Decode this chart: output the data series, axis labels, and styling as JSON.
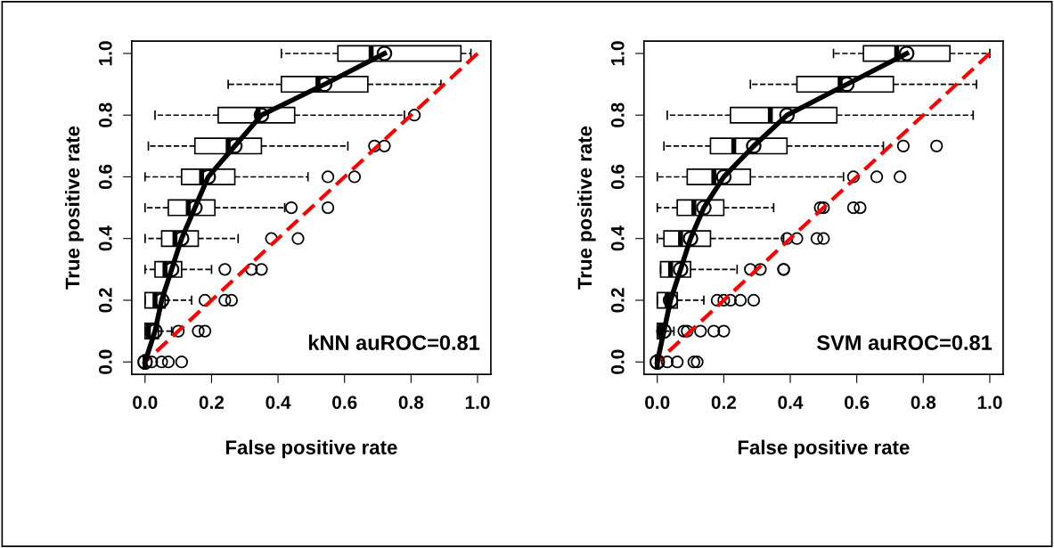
{
  "chart_data": [
    {
      "type": "box",
      "orientation": "horizontal",
      "xlabel": "False positive rate",
      "ylabel": "True positive rate",
      "categories": [
        "1.0",
        null,
        "0.8",
        null,
        "0.6",
        null,
        "0.4",
        null,
        "0.2",
        null,
        "0.0"
      ],
      "xlim": [
        -0.04,
        1.04
      ],
      "xticks": [
        {
          "value": 0,
          "label": "0.0"
        },
        {
          "value": 0.2,
          "label": "0.2"
        },
        {
          "value": 0.4,
          "label": "0.4"
        },
        {
          "value": 0.6,
          "label": "0.6"
        },
        {
          "value": 0.8,
          "label": "0.8"
        },
        {
          "value": 1,
          "label": "1.0"
        }
      ],
      "grid": false,
      "legend": false,
      "annotations": [
        "kNN auROC=0.81"
      ],
      "boxes": [
        {
          "low": 0.41,
          "q1": 0.58,
          "median": 0.68,
          "q3": 0.95,
          "high": 0.98
        },
        {
          "low": 0.25,
          "q1": 0.41,
          "median": 0.52,
          "q3": 0.67,
          "high": 0.89
        },
        {
          "low": 0.03,
          "q1": 0.22,
          "median": 0.34,
          "q3": 0.45,
          "high": 0.78,
          "outliers": [
            0.81
          ]
        },
        {
          "low": 0.01,
          "q1": 0.15,
          "median": 0.25,
          "q3": 0.35,
          "high": 0.61,
          "outliers": [
            0.69,
            0.72
          ]
        },
        {
          "low": 0,
          "q1": 0.11,
          "median": 0.17,
          "q3": 0.27,
          "high": 0.49,
          "outliers": [
            0.55,
            0.63
          ]
        },
        {
          "low": 0,
          "q1": 0.07,
          "median": 0.13,
          "q3": 0.21,
          "high": 0.42,
          "outliers": [
            0.44,
            0.55
          ]
        },
        {
          "low": 0,
          "q1": 0.05,
          "median": 0.09,
          "q3": 0.16,
          "high": 0.28,
          "outliers": [
            0.38,
            0.46
          ]
        },
        {
          "low": 0,
          "q1": 0.03,
          "median": 0.06,
          "q3": 0.11,
          "high": 0.2,
          "outliers": [
            0.24,
            0.32,
            0.35
          ]
        },
        {
          "low": 0,
          "q1": 0,
          "median": 0.03,
          "q3": 0.06,
          "high": 0.14,
          "outliers": [
            0.18,
            0.24,
            0.26
          ]
        },
        {
          "low": 0,
          "q1": 0,
          "median": 0.01,
          "q3": 0.04,
          "high": 0.08,
          "outliers": [
            0.1,
            0.16,
            0.18
          ]
        },
        {
          "low": 0,
          "q1": 0,
          "median": 0,
          "q3": 0,
          "high": 0,
          "outliers": [
            0.02,
            0.05,
            0.07,
            0.11
          ]
        }
      ],
      "series": [
        {
          "type": "line",
          "color": "#ff0000",
          "line_style": "dashed",
          "values": [
            1.0,
            0.9,
            0.8,
            0.7,
            0.6,
            0.5,
            0.4,
            0.3,
            0.2,
            0.1,
            0
          ]
        },
        {
          "type": "line",
          "color": "#000000",
          "line_style": "solid",
          "marker": "circle",
          "values": [
            0.72,
            0.54,
            0.35,
            0.27,
            0.19,
            0.15,
            0.11,
            0.08,
            0.05,
            0.03,
            0
          ]
        }
      ]
    },
    {
      "type": "box",
      "orientation": "horizontal",
      "xlabel": "False positive rate",
      "ylabel": "True positive rate",
      "categories": [
        "1.0",
        null,
        "0.8",
        null,
        "0.6",
        null,
        "0.4",
        null,
        "0.2",
        null,
        "0.0"
      ],
      "xlim": [
        -0.04,
        1.04
      ],
      "xticks": [
        {
          "value": 0,
          "label": "0.0"
        },
        {
          "value": 0.2,
          "label": "0.2"
        },
        {
          "value": 0.4,
          "label": "0.4"
        },
        {
          "value": 0.6,
          "label": "0.6"
        },
        {
          "value": 0.8,
          "label": "0.8"
        },
        {
          "value": 1,
          "label": "1.0"
        }
      ],
      "grid": false,
      "legend": false,
      "annotations": [
        "SVM auROC=0.81"
      ],
      "boxes": [
        {
          "low": 0.53,
          "q1": 0.62,
          "median": 0.72,
          "q3": 0.88,
          "high": 1.0
        },
        {
          "low": 0.28,
          "q1": 0.42,
          "median": 0.55,
          "q3": 0.71,
          "high": 0.96
        },
        {
          "low": 0.03,
          "q1": 0.22,
          "median": 0.34,
          "q3": 0.54,
          "high": 0.95
        },
        {
          "low": 0.02,
          "q1": 0.16,
          "median": 0.23,
          "q3": 0.39,
          "high": 0.68,
          "outliers": [
            0.74,
            0.84
          ]
        },
        {
          "low": 0,
          "q1": 0.09,
          "median": 0.17,
          "q3": 0.28,
          "high": 0.56,
          "outliers": [
            0.59,
            0.66,
            0.73
          ]
        },
        {
          "low": 0,
          "q1": 0.06,
          "median": 0.11,
          "q3": 0.2,
          "high": 0.35,
          "outliers": [
            0.49,
            0.5,
            0.59,
            0.61
          ]
        },
        {
          "low": 0,
          "q1": 0.02,
          "median": 0.07,
          "q3": 0.16,
          "high": 0.38,
          "outliers": [
            0.39,
            0.42,
            0.48,
            0.5
          ]
        },
        {
          "low": 0.01,
          "q1": 0.01,
          "median": 0.04,
          "q3": 0.1,
          "high": 0.24,
          "outliers": [
            0.28,
            0.31,
            0.38,
            0.38
          ]
        },
        {
          "low": 0,
          "q1": 0,
          "median": 0.03,
          "q3": 0.06,
          "high": 0.14,
          "outliers": [
            0.18,
            0.2,
            0.22,
            0.25,
            0.29
          ]
        },
        {
          "low": 0,
          "q1": 0,
          "median": 0.01,
          "q3": 0.02,
          "high": 0.05,
          "outliers": [
            0.08,
            0.09,
            0.13,
            0.17,
            0.2
          ]
        },
        {
          "low": 0,
          "q1": 0,
          "median": 0,
          "q3": 0,
          "high": 0,
          "outliers": [
            0.03,
            0.06,
            0.11,
            0.12
          ]
        }
      ],
      "series": [
        {
          "type": "line",
          "color": "#ff0000",
          "line_style": "dashed",
          "values": [
            1.0,
            0.9,
            0.8,
            0.7,
            0.6,
            0.5,
            0.4,
            0.3,
            0.2,
            0.1,
            0
          ]
        },
        {
          "type": "line",
          "color": "#000000",
          "line_style": "solid",
          "marker": "circle",
          "values": [
            0.75,
            0.57,
            0.39,
            0.29,
            0.2,
            0.14,
            0.1,
            0.07,
            0.04,
            0.02,
            0
          ]
        }
      ]
    }
  ]
}
